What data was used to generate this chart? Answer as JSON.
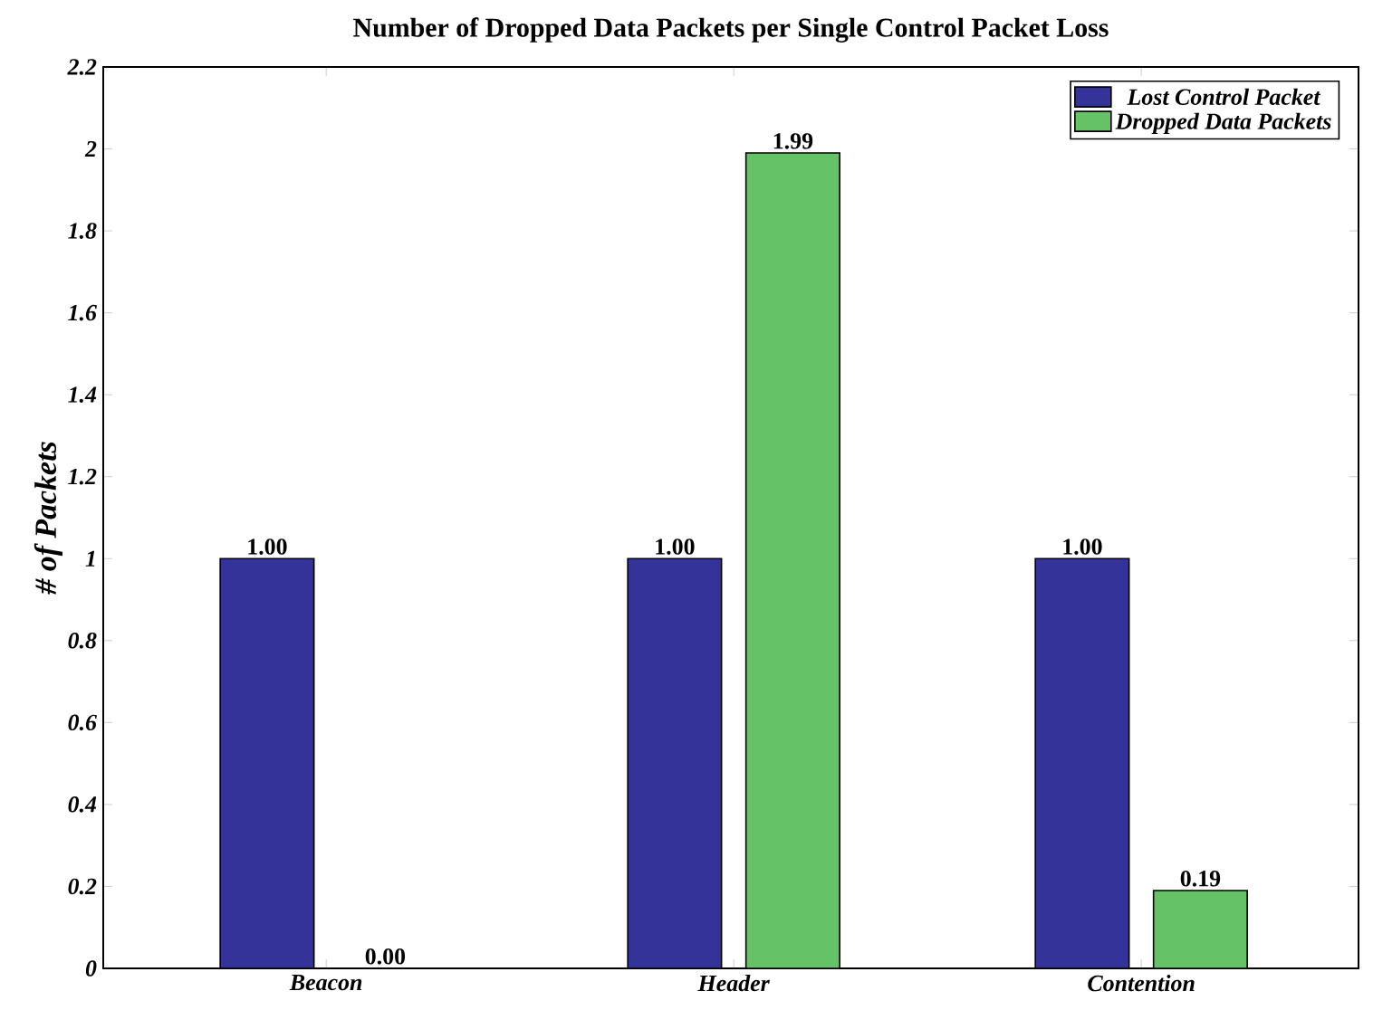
{
  "chart_data": {
    "type": "bar",
    "title": "Number of Dropped Data Packets per Single Control Packet Loss",
    "ylabel": "# of Packets",
    "categories": [
      "Beacon",
      "Header",
      "Contention"
    ],
    "series": [
      {
        "name": "Lost Control Packet",
        "color": "#333399",
        "values": [
          1.0,
          1.0,
          1.0
        ],
        "value_labels": [
          "1.00",
          "1.00",
          "1.00"
        ]
      },
      {
        "name": "Dropped Data Packets",
        "color": "#66c266",
        "values": [
          0.0,
          1.99,
          0.19
        ],
        "value_labels": [
          "0.00",
          "1.99",
          "0.19"
        ]
      }
    ],
    "ylim": [
      0,
      2.2
    ],
    "yticks": [
      0,
      0.2,
      0.4,
      0.6,
      0.8,
      1,
      1.2,
      1.4,
      1.6,
      1.8,
      2,
      2.2
    ],
    "grid": false,
    "legend": "top right"
  }
}
